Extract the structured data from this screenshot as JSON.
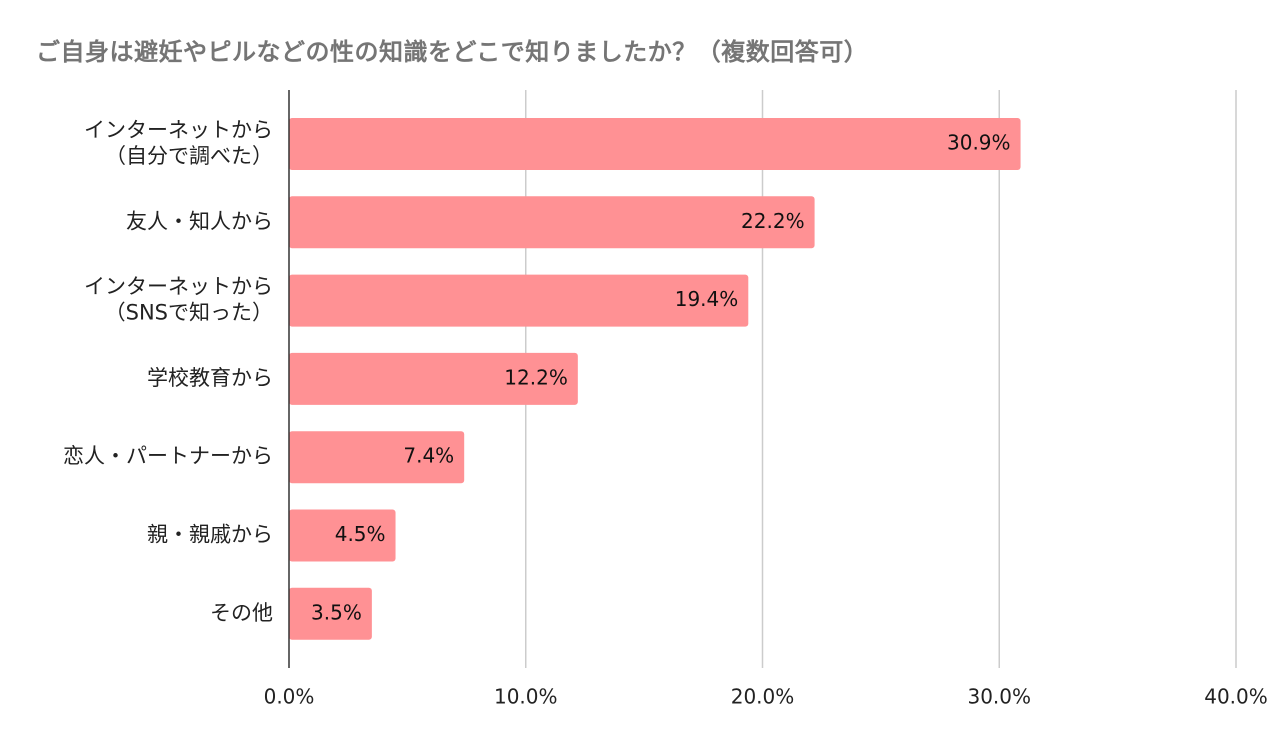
{
  "chart_data": {
    "type": "bar",
    "orientation": "horizontal",
    "title": "ご自身は避妊やピルなどの性の知識をどこで知りましたか？（複数回答可）",
    "categories": [
      [
        "インターネットから",
        "（自分で調べた）"
      ],
      [
        "友人・知人から"
      ],
      [
        "インターネットから",
        "（SNSで知った）"
      ],
      [
        "学校教育から"
      ],
      [
        "恋人・パートナーから"
      ],
      [
        "親・親戚から"
      ],
      [
        "その他"
      ]
    ],
    "values": [
      30.9,
      22.2,
      19.4,
      12.2,
      7.4,
      4.5,
      3.5
    ],
    "value_labels": [
      "30.9%",
      "22.2%",
      "19.4%",
      "12.2%",
      "7.4%",
      "4.5%",
      "3.5%"
    ],
    "xlim": [
      0,
      40
    ],
    "x_ticks": [
      0,
      10,
      20,
      30,
      40
    ],
    "x_tick_labels": [
      "0.0%",
      "10.0%",
      "20.0%",
      "30.0%",
      "40.0%"
    ],
    "xlabel": "",
    "ylabel": "",
    "grid": true,
    "legend": "none",
    "bar_color": "#ff9194"
  }
}
